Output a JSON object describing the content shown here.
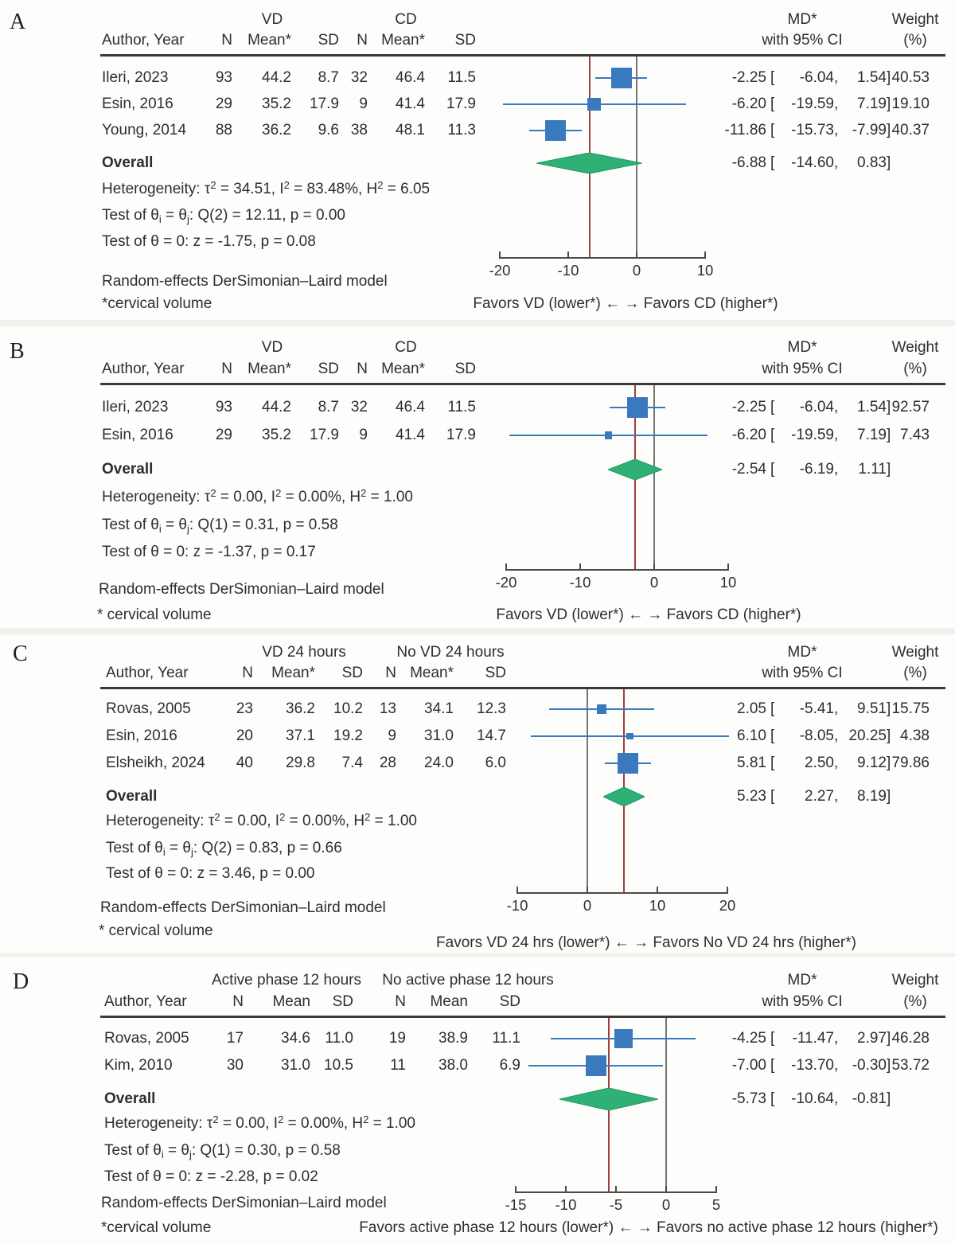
{
  "punct": {
    "open": "[",
    "comma": ",",
    "close": "]"
  },
  "chart_data": [
    {
      "type": "forest",
      "panel_label": "A",
      "group1": "VD",
      "group2": "CD",
      "author_header": "Author, Year",
      "subheaders": [
        "N",
        "Mean*",
        "SD",
        "N",
        "Mean*",
        "SD"
      ],
      "effect_header": [
        "MD*",
        "with 95% CI"
      ],
      "weight_header": [
        "Weight",
        "(%)"
      ],
      "studies": [
        {
          "author": "Ileri, 2023",
          "n1": "93",
          "mean1": "44.2",
          "sd1": "8.7",
          "n2": "32",
          "mean2": "46.4",
          "sd2": "11.5",
          "est": "-2.25",
          "lo": "-6.04",
          "hi": "1.54",
          "weight": "40.53",
          "est_v": -2.25,
          "lo_v": -6.04,
          "hi_v": 1.54,
          "weight_v": 40.53
        },
        {
          "author": "Esin, 2016",
          "n1": "29",
          "mean1": "35.2",
          "sd1": "17.9",
          "n2": "9",
          "mean2": "41.4",
          "sd2": "17.9",
          "est": "-6.20",
          "lo": "-19.59",
          "hi": "7.19",
          "weight": "19.10",
          "est_v": -6.2,
          "lo_v": -19.59,
          "hi_v": 7.19,
          "weight_v": 19.1
        },
        {
          "author": "Young, 2014",
          "n1": "88",
          "mean1": "36.2",
          "sd1": "9.6",
          "n2": "38",
          "mean2": "48.1",
          "sd2": "11.3",
          "est": "-11.86",
          "lo": "-15.73",
          "hi": "-7.99",
          "weight": "40.37",
          "est_v": -11.86,
          "lo_v": -15.73,
          "hi_v": -7.99,
          "weight_v": 40.37
        }
      ],
      "overall": {
        "label": "Overall",
        "est": "-6.88",
        "lo": "-14.60",
        "hi": "0.83",
        "est_v": -6.88,
        "lo_v": -14.6,
        "hi_v": 0.83
      },
      "stats": [
        [
          {
            "text": "Heterogeneity: τ"
          },
          {
            "sup": "2"
          },
          {
            "text": " = 34.51, I"
          },
          {
            "sup": "2"
          },
          {
            "text": " = 83.48%, H"
          },
          {
            "sup": "2"
          },
          {
            "text": " = 6.05"
          }
        ],
        [
          {
            "text": "Test of θ"
          },
          {
            "sub": "i"
          },
          {
            "text": " = θ"
          },
          {
            "sub": "j"
          },
          {
            "text": ": Q(2) = 12.11, p = 0.00"
          }
        ],
        [
          {
            "text": "Test of θ = 0: z = -1.75, p = 0.08"
          }
        ]
      ],
      "model_note": "Random-effects DerSimonian–Laird model",
      "footnote": "*cervical volume",
      "axis": {
        "ticks": [
          {
            "label": "-20",
            "v": -20
          },
          {
            "label": "-10",
            "v": -10
          },
          {
            "label": "0",
            "v": 0
          },
          {
            "label": "10",
            "v": 10
          }
        ]
      },
      "favors": "Favors VD (lower*) ← → Favors CD (higher*)"
    },
    {
      "type": "forest",
      "panel_label": "B",
      "group1": "VD",
      "group2": "CD",
      "author_header": "Author, Year",
      "subheaders": [
        "N",
        "Mean*",
        "SD",
        "N",
        "Mean*",
        "SD"
      ],
      "effect_header": [
        "MD*",
        "with 95% CI"
      ],
      "weight_header": [
        "Weight",
        "(%)"
      ],
      "studies": [
        {
          "author": "Ileri, 2023",
          "n1": "93",
          "mean1": "44.2",
          "sd1": "8.7",
          "n2": "32",
          "mean2": "46.4",
          "sd2": "11.5",
          "est": "-2.25",
          "lo": "-6.04",
          "hi": "1.54",
          "weight": "92.57",
          "est_v": -2.25,
          "lo_v": -6.04,
          "hi_v": 1.54,
          "weight_v": 92.57
        },
        {
          "author": "Esin, 2016",
          "n1": "29",
          "mean1": "35.2",
          "sd1": "17.9",
          "n2": "9",
          "mean2": "41.4",
          "sd2": "17.9",
          "est": "-6.20",
          "lo": "-19.59",
          "hi": "7.19",
          "weight": "7.43",
          "est_v": -6.2,
          "lo_v": -19.59,
          "hi_v": 7.19,
          "weight_v": 7.43
        }
      ],
      "overall": {
        "label": "Overall",
        "est": "-2.54",
        "lo": "-6.19",
        "hi": "1.11",
        "est_v": -2.54,
        "lo_v": -6.19,
        "hi_v": 1.11
      },
      "stats": [
        [
          {
            "text": "Heterogeneity: τ"
          },
          {
            "sup": "2"
          },
          {
            "text": " = 0.00, I"
          },
          {
            "sup": "2"
          },
          {
            "text": " = 0.00%, H"
          },
          {
            "sup": "2"
          },
          {
            "text": " = 1.00"
          }
        ],
        [
          {
            "text": "Test of θ"
          },
          {
            "sub": "i"
          },
          {
            "text": " = θ"
          },
          {
            "sub": "j"
          },
          {
            "text": ": Q(1) = 0.31, p = 0.58"
          }
        ],
        [
          {
            "text": "Test of θ = 0: z = -1.37, p = 0.17"
          }
        ]
      ],
      "model_note": "Random-effects DerSimonian–Laird model",
      "footnote": "* cervical volume",
      "axis": {
        "ticks": [
          {
            "label": "-20",
            "v": -20
          },
          {
            "label": "-10",
            "v": -10
          },
          {
            "label": "0",
            "v": 0
          },
          {
            "label": "10",
            "v": 10
          }
        ]
      },
      "favors": "Favors VD (lower*) ← → Favors CD (higher*)"
    },
    {
      "type": "forest",
      "panel_label": "C",
      "group1": "VD 24 hours",
      "group2": "No VD 24 hours",
      "author_header": "Author, Year",
      "subheaders": [
        "N",
        "Mean*",
        "SD",
        "N",
        "Mean*",
        "SD"
      ],
      "effect_header": [
        "MD*",
        "with 95% CI"
      ],
      "weight_header": [
        "Weight",
        "(%)"
      ],
      "studies": [
        {
          "author": "Rovas, 2005",
          "n1": "23",
          "mean1": "36.2",
          "sd1": "10.2",
          "n2": "13",
          "mean2": "34.1",
          "sd2": "12.3",
          "est": "2.05",
          "lo": "-5.41",
          "hi": "9.51",
          "weight": "15.75",
          "est_v": 2.05,
          "lo_v": -5.41,
          "hi_v": 9.51,
          "weight_v": 15.75
        },
        {
          "author": "Esin, 2016",
          "n1": "20",
          "mean1": "37.1",
          "sd1": "19.2",
          "n2": "9",
          "mean2": "31.0",
          "sd2": "14.7",
          "est": "6.10",
          "lo": "-8.05",
          "hi": "20.25",
          "weight": "4.38",
          "est_v": 6.1,
          "lo_v": -8.05,
          "hi_v": 20.25,
          "weight_v": 4.38
        },
        {
          "author": "Elsheikh, 2024",
          "n1": "40",
          "mean1": "29.8",
          "sd1": "7.4",
          "n2": "28",
          "mean2": "24.0",
          "sd2": "6.0",
          "est": "5.81",
          "lo": "2.50",
          "hi": "9.12",
          "weight": "79.86",
          "est_v": 5.81,
          "lo_v": 2.5,
          "hi_v": 9.12,
          "weight_v": 79.86
        }
      ],
      "overall": {
        "label": "Overall",
        "est": "5.23",
        "lo": "2.27",
        "hi": "8.19",
        "est_v": 5.23,
        "lo_v": 2.27,
        "hi_v": 8.19
      },
      "stats": [
        [
          {
            "text": "Heterogeneity: τ"
          },
          {
            "sup": "2"
          },
          {
            "text": " = 0.00, I"
          },
          {
            "sup": "2"
          },
          {
            "text": " = 0.00%, H"
          },
          {
            "sup": "2"
          },
          {
            "text": " = 1.00"
          }
        ],
        [
          {
            "text": "Test of θ"
          },
          {
            "sub": "i"
          },
          {
            "text": " = θ"
          },
          {
            "sub": "j"
          },
          {
            "text": ": Q(2) = 0.83, p = 0.66"
          }
        ],
        [
          {
            "text": "Test of θ = 0: z = 3.46, p = 0.00"
          }
        ]
      ],
      "model_note": "Random-effects DerSimonian–Laird model",
      "footnote": "* cervical volume",
      "axis": {
        "ticks": [
          {
            "label": "-10",
            "v": -10
          },
          {
            "label": "0",
            "v": 0
          },
          {
            "label": "10",
            "v": 10
          },
          {
            "label": "20",
            "v": 20
          }
        ]
      },
      "favors": "Favors VD 24 hrs (lower*) ← → Favors No VD 24 hrs (higher*)"
    },
    {
      "type": "forest",
      "panel_label": "D",
      "group1": "Active phase 12 hours",
      "group2": "No active phase 12 hours",
      "author_header": "Author, Year",
      "subheaders": [
        "N",
        "Mean",
        "SD",
        "N",
        "Mean",
        "SD"
      ],
      "effect_header": [
        "MD*",
        "with 95% CI"
      ],
      "weight_header": [
        "Weight",
        "(%)"
      ],
      "studies": [
        {
          "author": "Rovas, 2005",
          "n1": "17",
          "mean1": "34.6",
          "sd1": "11.0",
          "n2": "19",
          "mean2": "38.9",
          "sd2": "11.1",
          "est": "-4.25",
          "lo": "-11.47",
          "hi": "2.97",
          "weight": "46.28",
          "est_v": -4.25,
          "lo_v": -11.47,
          "hi_v": 2.97,
          "weight_v": 46.28
        },
        {
          "author": "Kim, 2010",
          "n1": "30",
          "mean1": "31.0",
          "sd1": "10.5",
          "n2": "11",
          "mean2": "38.0",
          "sd2": "6.9",
          "est": "-7.00",
          "lo": "-13.70",
          "hi": "-0.30",
          "weight": "53.72",
          "est_v": -7.0,
          "lo_v": -13.7,
          "hi_v": -0.3,
          "weight_v": 53.72
        }
      ],
      "overall": {
        "label": "Overall",
        "est": "-5.73",
        "lo": "-10.64",
        "hi": "-0.81",
        "est_v": -5.73,
        "lo_v": -10.64,
        "hi_v": -0.81
      },
      "stats": [
        [
          {
            "text": "Heterogeneity: τ"
          },
          {
            "sup": "2"
          },
          {
            "text": " = 0.00, I"
          },
          {
            "sup": "2"
          },
          {
            "text": " = 0.00%, H"
          },
          {
            "sup": "2"
          },
          {
            "text": " = 1.00"
          }
        ],
        [
          {
            "text": "Test of θ"
          },
          {
            "sub": "i"
          },
          {
            "text": " = θ"
          },
          {
            "sub": "j"
          },
          {
            "text": ": Q(1) = 0.30, p = 0.58"
          }
        ],
        [
          {
            "text": "Test of θ = 0: z = -2.28, p = 0.02"
          }
        ]
      ],
      "model_note": "Random-effects DerSimonian–Laird model",
      "footnote": "*cervical volume",
      "axis": {
        "ticks": [
          {
            "label": "-15",
            "v": -15
          },
          {
            "label": "-10",
            "v": -10
          },
          {
            "label": "-5",
            "v": -5
          },
          {
            "label": "0",
            "v": 0
          },
          {
            "label": "5",
            "v": 5
          }
        ]
      },
      "favors": "Favors active phase 12 hours (lower*) ← → Favors no active phase 12 hours (higher*)"
    }
  ],
  "colors": {
    "marker_blue": "#3b79be",
    "diamond_green": "#2fb176",
    "diamond_edge": "#1f9763",
    "null_line_gray": "#757575",
    "overall_line_red": "#a03f3c",
    "axis_dark": "#4a4a4a",
    "text": "#2e2e2e"
  }
}
